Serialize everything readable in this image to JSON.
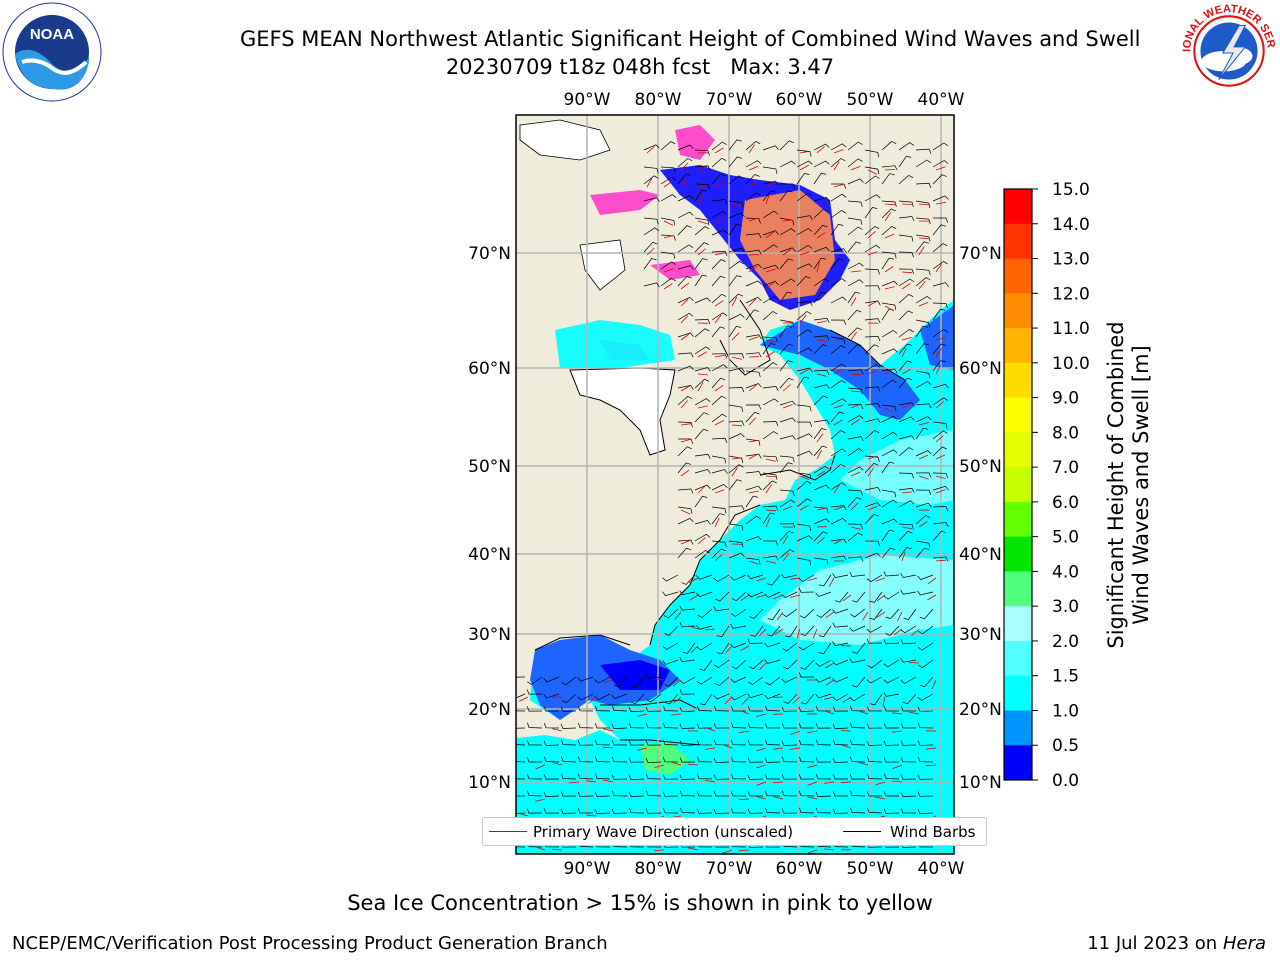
{
  "header": {
    "title_line1": "GEFS MEAN Northwest Atlantic Significant Height of Combined Wind Waves and Swell",
    "title_line2": "20230709 t18z 048h fcst   Max: 3.47"
  },
  "logos": {
    "left": {
      "icon": "noaa-logo-icon",
      "text": "NOAA"
    },
    "right": {
      "icon": "nws-logo-icon",
      "text": "NATIONAL WEATHER SERVICE"
    }
  },
  "map": {
    "lon_labels": [
      "90°W",
      "80°W",
      "70°W",
      "60°W",
      "50°W",
      "40°W"
    ],
    "lat_labels": [
      "70°N",
      "60°N",
      "50°N",
      "40°N",
      "30°N",
      "20°N",
      "10°N"
    ],
    "colors": {
      "land": "#efecdc",
      "ocean_mid": "#00ffff",
      "ocean_low": "#1e64ff",
      "sea_ice_pink": "#ff3cc8",
      "sea_ice_orange": "#ff8c50"
    }
  },
  "legend": {
    "wave_label": "Primary Wave Direction (unscaled)",
    "wave_color": "#e00000",
    "wind_label": "Wind Barbs",
    "wind_color": "#000000"
  },
  "colorbar": {
    "title_line1": "Significant Height of Combined",
    "title_line2": "Wind Waves and Swell [m]",
    "ticks": [
      "15.0",
      "14.0",
      "13.0",
      "12.0",
      "11.0",
      "10.0",
      "9.0",
      "8.0",
      "7.0",
      "6.0",
      "5.0",
      "4.0",
      "3.0",
      "2.0",
      "1.5",
      "1.0",
      "0.5",
      "0.0"
    ],
    "colors": [
      "#ff0000",
      "#ff3200",
      "#ff6400",
      "#ff8c00",
      "#ffb400",
      "#ffdc00",
      "#ffff00",
      "#e6ff00",
      "#c8ff00",
      "#64ff00",
      "#00e600",
      "#50ff7d",
      "#aaffff",
      "#50ffff",
      "#00ffff",
      "#0096ff",
      "#0000ff"
    ]
  },
  "footer": {
    "note": "Sea Ice Concentration > 15% is shown in pink to yellow",
    "credit": "NCEP/EMC/Verification Post Processing Product Generation Branch",
    "date": "11 Jul 2023 on",
    "machine": "Hera"
  }
}
